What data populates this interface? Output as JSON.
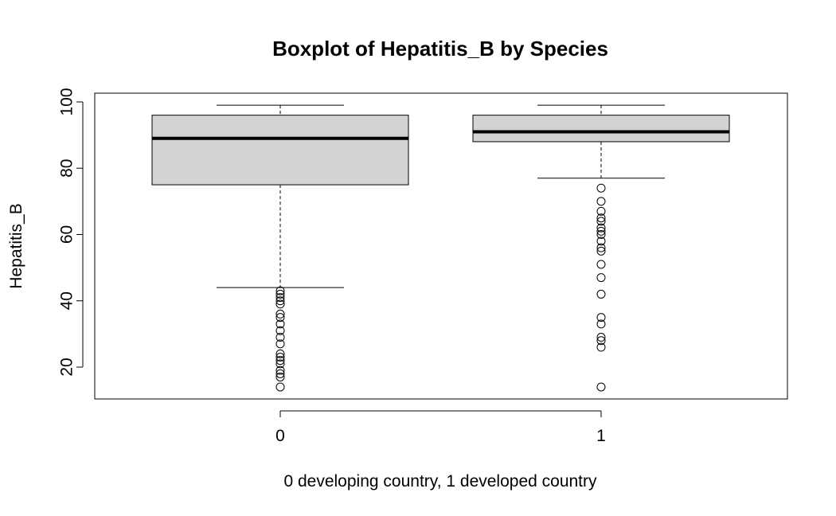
{
  "chart_data": {
    "type": "boxplot",
    "title": "Boxplot of Hepatitis_B by Species",
    "xlabel": "0 developing country, 1 developed country",
    "ylabel": "Hepatitis_B",
    "ylim": [
      10,
      102
    ],
    "yticks": [
      20,
      40,
      60,
      80,
      100
    ],
    "categories": [
      "0",
      "1"
    ],
    "boxes": [
      {
        "group": "0",
        "whisker_low": 44,
        "q1": 75,
        "median": 89,
        "q3": 96,
        "whisker_high": 99,
        "outliers": [
          43,
          42,
          41,
          40,
          39,
          36,
          35,
          33,
          31,
          29,
          27,
          24,
          23,
          22,
          21,
          19,
          18,
          17,
          14
        ]
      },
      {
        "group": "1",
        "whisker_low": 77,
        "q1": 88,
        "median": 91,
        "q3": 96,
        "whisker_high": 99,
        "outliers": [
          74,
          70,
          67,
          65,
          64,
          62,
          61,
          60,
          58,
          56,
          55,
          51,
          47,
          42,
          35,
          33,
          29,
          28,
          26,
          14
        ]
      }
    ],
    "box_fill": "#d3d3d3",
    "grid": false
  }
}
